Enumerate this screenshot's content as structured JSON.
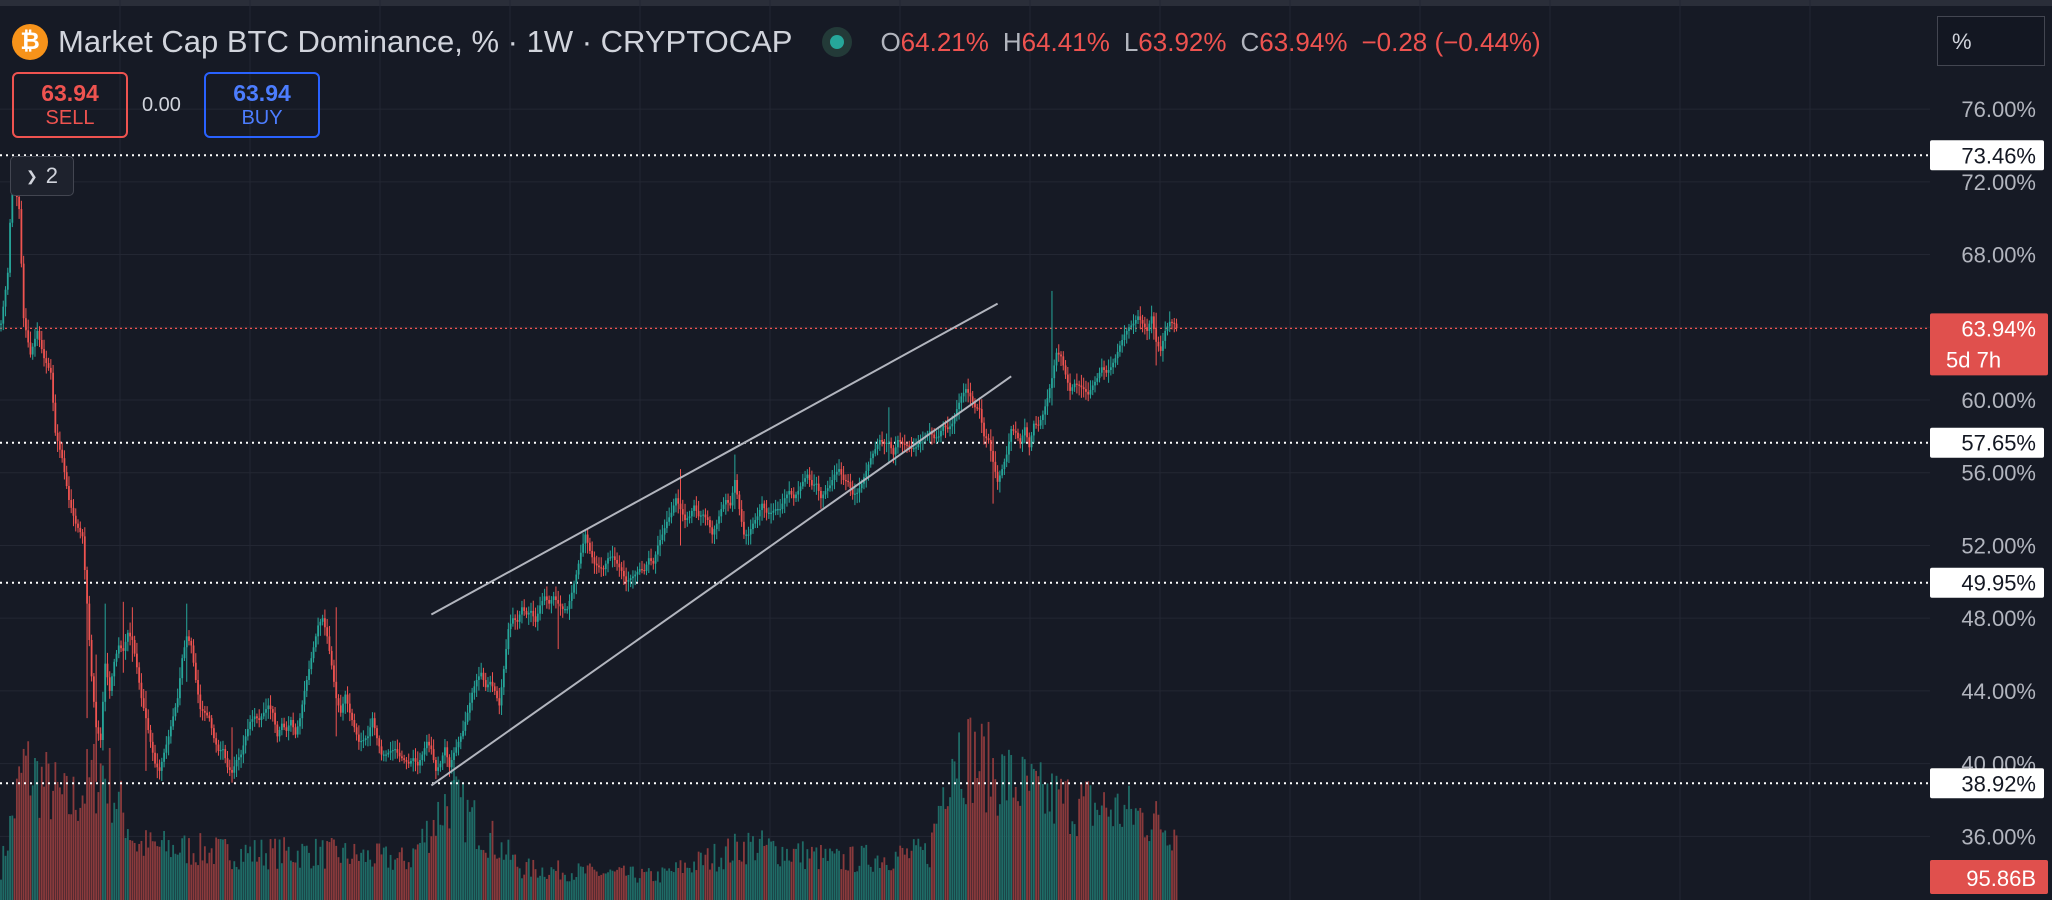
{
  "header": {
    "symbol_icon": "bitcoin-icon",
    "symbol_icon_glyph": "₿",
    "title": "Market Cap BTC Dominance, % · 1W · CRYPTOCAP",
    "ohlc": [
      {
        "key": "O",
        "value": "64.21%"
      },
      {
        "key": "H",
        "value": "64.41%"
      },
      {
        "key": "L",
        "value": "63.92%"
      },
      {
        "key": "C",
        "value": "63.94%"
      }
    ],
    "change": "−0.28 (−0.44%)"
  },
  "trade": {
    "sell_price": "63.94",
    "sell_label": "SELL",
    "spread": "0.00",
    "buy_price": "63.94",
    "buy_label": "BUY"
  },
  "collapse_count": "2",
  "unit_label": "%",
  "colors": {
    "up": "#26a69a",
    "down": "#ef5350",
    "grid": "#232733",
    "axis_text": "#b2b5be",
    "volume_up": "#1f6b66",
    "volume_down": "#8a3a3c",
    "channel": "#b2b5be"
  },
  "chart_data": {
    "type": "candlestick",
    "title": "Market Cap BTC Dominance, % · 1W · CRYPTOCAP",
    "interval": "1W",
    "ylim": [
      32.5,
      82.0
    ],
    "y_ticks": [
      "76.00%",
      "72.00%",
      "68.00%",
      "64.00%",
      "60.00%",
      "56.00%",
      "52.00%",
      "48.00%",
      "44.00%",
      "40.00%",
      "36.00%"
    ],
    "y_tick_values": [
      76,
      72,
      68,
      64,
      60,
      56,
      52,
      48,
      44,
      40,
      36
    ],
    "horizontal_levels": [
      {
        "value": 73.46,
        "label": "73.46%"
      },
      {
        "value": 57.65,
        "label": "57.65%"
      },
      {
        "value": 49.95,
        "label": "49.95%"
      },
      {
        "value": 38.92,
        "label": "38.92%"
      }
    ],
    "last_price": {
      "value": 63.94,
      "label": "63.94%",
      "countdown": "5d 7h"
    },
    "volume_last": "95.86B",
    "channel": {
      "upper": {
        "from": [
          190,
          48.2
        ],
        "to": [
          440,
          65.3
        ]
      },
      "lower": {
        "from": [
          190,
          38.8
        ],
        "to": [
          446,
          61.3
        ]
      }
    },
    "anchors": [
      [
        0,
        64.2
      ],
      [
        3,
        67.0
      ],
      [
        5,
        72.5
      ],
      [
        8,
        70.5
      ],
      [
        10,
        64.5
      ],
      [
        13,
        62.5
      ],
      [
        16,
        63.8
      ],
      [
        19,
        62.3
      ],
      [
        22,
        61.5
      ],
      [
        24,
        58.2
      ],
      [
        27,
        56.8
      ],
      [
        30,
        54.5
      ],
      [
        33,
        53.2
      ],
      [
        36,
        52.5
      ],
      [
        38,
        48.8
      ],
      [
        40,
        44.8
      ],
      [
        42,
        42.0
      ],
      [
        44,
        41.3
      ],
      [
        46,
        45.5
      ],
      [
        48,
        44.0
      ],
      [
        50,
        45.6
      ],
      [
        52,
        46.5
      ],
      [
        54,
        46.2
      ],
      [
        56,
        47.2
      ],
      [
        58,
        46.8
      ],
      [
        60,
        45.3
      ],
      [
        62,
        43.6
      ],
      [
        64,
        42.5
      ],
      [
        66,
        41.2
      ],
      [
        68,
        40.0
      ],
      [
        70,
        39.6
      ],
      [
        72,
        40.6
      ],
      [
        74,
        41.5
      ],
      [
        76,
        42.6
      ],
      [
        78,
        43.6
      ],
      [
        80,
        45.8
      ],
      [
        82,
        47.0
      ],
      [
        84,
        46.5
      ],
      [
        86,
        44.6
      ],
      [
        88,
        43.0
      ],
      [
        90,
        42.8
      ],
      [
        92,
        42.5
      ],
      [
        94,
        41.4
      ],
      [
        96,
        40.7
      ],
      [
        98,
        40.8
      ],
      [
        100,
        39.8
      ],
      [
        102,
        39.5
      ],
      [
        104,
        40.2
      ],
      [
        106,
        40.5
      ],
      [
        108,
        41.5
      ],
      [
        110,
        42.3
      ],
      [
        112,
        42.6
      ],
      [
        114,
        42.4
      ],
      [
        116,
        42.8
      ],
      [
        118,
        43.2
      ],
      [
        120,
        42.8
      ],
      [
        122,
        41.5
      ],
      [
        124,
        42.2
      ],
      [
        126,
        41.8
      ],
      [
        128,
        42.4
      ],
      [
        130,
        41.6
      ],
      [
        132,
        42.5
      ],
      [
        134,
        44.0
      ],
      [
        136,
        45.2
      ],
      [
        138,
        46.4
      ],
      [
        140,
        47.6
      ],
      [
        142,
        48.0
      ],
      [
        144,
        47.0
      ],
      [
        146,
        45.4
      ],
      [
        148,
        43.6
      ],
      [
        150,
        42.8
      ],
      [
        152,
        43.8
      ],
      [
        154,
        42.8
      ],
      [
        156,
        42.0
      ],
      [
        158,
        41.2
      ],
      [
        160,
        41.3
      ],
      [
        162,
        41.5
      ],
      [
        164,
        42.5
      ],
      [
        166,
        41.4
      ],
      [
        168,
        40.5
      ],
      [
        170,
        40.5
      ],
      [
        172,
        40.7
      ],
      [
        174,
        40.8
      ],
      [
        176,
        40.4
      ],
      [
        178,
        40.2
      ],
      [
        180,
        40.0
      ],
      [
        182,
        40.3
      ],
      [
        184,
        39.9
      ],
      [
        186,
        40.5
      ],
      [
        188,
        41.2
      ],
      [
        190,
        40.8
      ],
      [
        192,
        39.6
      ],
      [
        194,
        40.0
      ],
      [
        196,
        40.9
      ],
      [
        198,
        39.8
      ],
      [
        200,
        40.6
      ],
      [
        202,
        41.2
      ],
      [
        204,
        41.8
      ],
      [
        206,
        42.8
      ],
      [
        208,
        43.9
      ],
      [
        210,
        44.6
      ],
      [
        212,
        45.0
      ],
      [
        214,
        44.2
      ],
      [
        216,
        44.5
      ],
      [
        218,
        44.0
      ],
      [
        220,
        43.2
      ],
      [
        222,
        45.2
      ],
      [
        224,
        47.4
      ],
      [
        226,
        48.0
      ],
      [
        228,
        47.8
      ],
      [
        230,
        48.6
      ],
      [
        232,
        48.2
      ],
      [
        234,
        48.4
      ],
      [
        236,
        47.8
      ],
      [
        238,
        48.7
      ],
      [
        240,
        49.2
      ],
      [
        242,
        48.8
      ],
      [
        244,
        49.2
      ],
      [
        246,
        48.8
      ],
      [
        248,
        48.5
      ],
      [
        250,
        48.5
      ],
      [
        252,
        49.4
      ],
      [
        254,
        50.4
      ],
      [
        256,
        51.6
      ],
      [
        258,
        52.6
      ],
      [
        260,
        51.7
      ],
      [
        262,
        51.0
      ],
      [
        264,
        50.8
      ],
      [
        266,
        50.7
      ],
      [
        268,
        51.3
      ],
      [
        270,
        51.4
      ],
      [
        272,
        51.0
      ],
      [
        274,
        50.6
      ],
      [
        276,
        50.0
      ],
      [
        278,
        50.2
      ],
      [
        280,
        50.4
      ],
      [
        282,
        50.7
      ],
      [
        284,
        50.6
      ],
      [
        286,
        51.3
      ],
      [
        288,
        51.0
      ],
      [
        290,
        52.0
      ],
      [
        292,
        52.6
      ],
      [
        294,
        53.3
      ],
      [
        296,
        53.8
      ],
      [
        298,
        54.6
      ],
      [
        300,
        54.0
      ],
      [
        302,
        53.4
      ],
      [
        304,
        53.6
      ],
      [
        306,
        54.2
      ],
      [
        308,
        53.6
      ],
      [
        310,
        53.7
      ],
      [
        312,
        53.4
      ],
      [
        314,
        52.6
      ],
      [
        316,
        53.2
      ],
      [
        318,
        54.0
      ],
      [
        320,
        54.5
      ],
      [
        322,
        54.2
      ],
      [
        324,
        55.6
      ],
      [
        326,
        54.0
      ],
      [
        328,
        52.6
      ],
      [
        330,
        52.6
      ],
      [
        332,
        53.2
      ],
      [
        334,
        53.6
      ],
      [
        336,
        54.3
      ],
      [
        338,
        53.8
      ],
      [
        340,
        53.8
      ],
      [
        342,
        54.0
      ],
      [
        344,
        54.0
      ],
      [
        346,
        54.6
      ],
      [
        348,
        55.0
      ],
      [
        350,
        54.6
      ],
      [
        352,
        55.0
      ],
      [
        354,
        55.5
      ],
      [
        356,
        55.9
      ],
      [
        358,
        55.3
      ],
      [
        360,
        55.4
      ],
      [
        362,
        54.6
      ],
      [
        364,
        55.0
      ],
      [
        366,
        55.3
      ],
      [
        368,
        55.9
      ],
      [
        370,
        56.2
      ],
      [
        372,
        55.6
      ],
      [
        374,
        55.5
      ],
      [
        376,
        54.8
      ],
      [
        378,
        54.9
      ],
      [
        380,
        55.4
      ],
      [
        382,
        56.1
      ],
      [
        384,
        56.8
      ],
      [
        386,
        57.3
      ],
      [
        388,
        57.8
      ],
      [
        390,
        57.6
      ],
      [
        392,
        57.7
      ],
      [
        394,
        57.0
      ],
      [
        396,
        57.8
      ],
      [
        398,
        57.6
      ],
      [
        400,
        57.5
      ],
      [
        402,
        57.3
      ],
      [
        404,
        57.4
      ],
      [
        406,
        57.8
      ],
      [
        408,
        58.0
      ],
      [
        410,
        58.3
      ],
      [
        412,
        57.9
      ],
      [
        414,
        58.0
      ],
      [
        416,
        58.6
      ],
      [
        418,
        58.4
      ],
      [
        420,
        58.7
      ],
      [
        422,
        59.5
      ],
      [
        424,
        60.2
      ],
      [
        426,
        60.6
      ],
      [
        428,
        60.2
      ],
      [
        430,
        59.6
      ],
      [
        432,
        59.5
      ],
      [
        434,
        58.0
      ],
      [
        436,
        57.8
      ],
      [
        438,
        56.6
      ],
      [
        440,
        55.5
      ],
      [
        442,
        56.2
      ],
      [
        444,
        57.0
      ],
      [
        446,
        58.4
      ],
      [
        448,
        58.2
      ],
      [
        450,
        57.6
      ],
      [
        452,
        58.5
      ],
      [
        454,
        57.4
      ],
      [
        456,
        58.7
      ],
      [
        458,
        58.6
      ],
      [
        460,
        59.2
      ],
      [
        462,
        60.1
      ],
      [
        464,
        61.2
      ],
      [
        466,
        62.6
      ],
      [
        468,
        62.4
      ],
      [
        470,
        61.4
      ],
      [
        472,
        60.5
      ],
      [
        474,
        60.9
      ],
      [
        476,
        60.8
      ],
      [
        478,
        60.6
      ],
      [
        480,
        60.3
      ],
      [
        482,
        60.8
      ],
      [
        484,
        61.2
      ],
      [
        486,
        61.8
      ],
      [
        488,
        61.5
      ],
      [
        490,
        61.8
      ],
      [
        492,
        62.3
      ],
      [
        494,
        63.0
      ],
      [
        496,
        63.6
      ],
      [
        498,
        64.0
      ],
      [
        500,
        64.2
      ],
      [
        502,
        64.6
      ],
      [
        504,
        64.2
      ],
      [
        506,
        63.8
      ],
      [
        508,
        64.6
      ],
      [
        510,
        63.2
      ],
      [
        512,
        62.7
      ],
      [
        514,
        63.8
      ],
      [
        516,
        64.3
      ],
      [
        518,
        64.2
      ],
      [
        519,
        63.94
      ]
    ],
    "spikes": [
      [
        38,
        42.5,
        47.6
      ],
      [
        42,
        39.0,
        46.0
      ],
      [
        46,
        44.0,
        48.8
      ],
      [
        54,
        45.0,
        48.9
      ],
      [
        58,
        45.6,
        48.6
      ],
      [
        64,
        39.6,
        44.0
      ],
      [
        82,
        44.5,
        48.8
      ],
      [
        102,
        39.0,
        42.0
      ],
      [
        148,
        41.5,
        48.6
      ],
      [
        200,
        38.9,
        40.7
      ],
      [
        246,
        46.3,
        49.5
      ],
      [
        300,
        52.0,
        56.2
      ],
      [
        324,
        54.0,
        57.0
      ],
      [
        392,
        56.5,
        59.6
      ],
      [
        438,
        54.3,
        58.0
      ],
      [
        464,
        59.7,
        66.0
      ],
      [
        510,
        61.9,
        64.8
      ]
    ],
    "volume_shape": [
      [
        0,
        0.2
      ],
      [
        10,
        0.85
      ],
      [
        30,
        0.6
      ],
      [
        45,
        0.85
      ],
      [
        60,
        0.35
      ],
      [
        100,
        0.3
      ],
      [
        140,
        0.3
      ],
      [
        180,
        0.25
      ],
      [
        198,
        0.65
      ],
      [
        230,
        0.2
      ],
      [
        290,
        0.15
      ],
      [
        330,
        0.35
      ],
      [
        370,
        0.25
      ],
      [
        410,
        0.3
      ],
      [
        420,
        1.0
      ],
      [
        440,
        0.8
      ],
      [
        460,
        0.65
      ],
      [
        480,
        0.6
      ],
      [
        500,
        0.55
      ],
      [
        519,
        0.45
      ]
    ]
  }
}
